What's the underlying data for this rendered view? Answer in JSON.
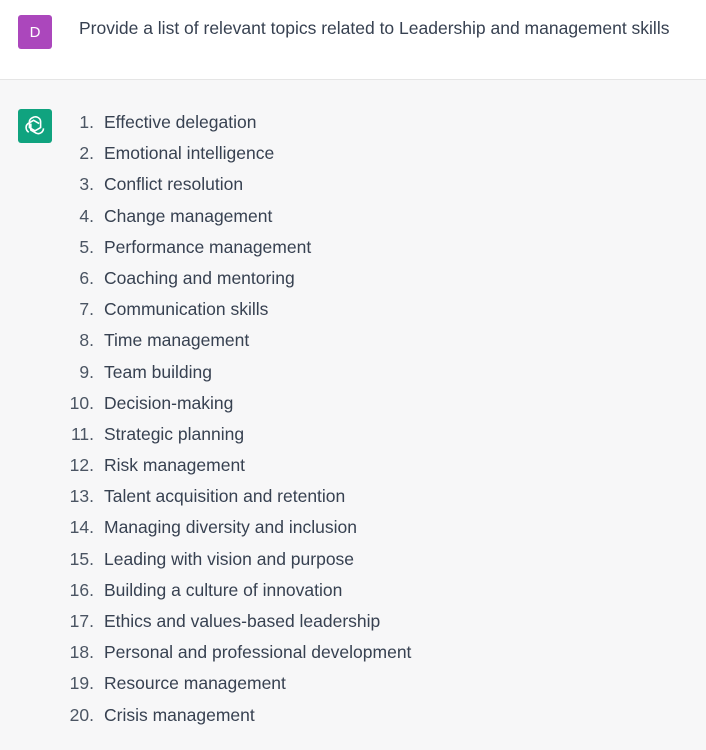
{
  "colors": {
    "user_avatar_bg": "#ab47bc",
    "assistant_avatar_bg": "#10a37f"
  },
  "user": {
    "avatar_letter": "D",
    "message": "Provide a list of relevant topics related to Leadership and management skills"
  },
  "assistant": {
    "avatar_icon": "openai-logo-icon",
    "items": [
      {
        "num": "1.",
        "text": "Effective delegation"
      },
      {
        "num": "2.",
        "text": "Emotional intelligence"
      },
      {
        "num": "3.",
        "text": "Conflict resolution"
      },
      {
        "num": "4.",
        "text": "Change management"
      },
      {
        "num": "5.",
        "text": "Performance management"
      },
      {
        "num": "6.",
        "text": "Coaching and mentoring"
      },
      {
        "num": "7.",
        "text": "Communication skills"
      },
      {
        "num": "8.",
        "text": "Time management"
      },
      {
        "num": "9.",
        "text": "Team building"
      },
      {
        "num": "10.",
        "text": "Decision-making"
      },
      {
        "num": "11.",
        "text": "Strategic planning"
      },
      {
        "num": "12.",
        "text": "Risk management"
      },
      {
        "num": "13.",
        "text": "Talent acquisition and retention"
      },
      {
        "num": "14.",
        "text": "Managing diversity and inclusion"
      },
      {
        "num": "15.",
        "text": "Leading with vision and purpose"
      },
      {
        "num": "16.",
        "text": "Building a culture of innovation"
      },
      {
        "num": "17.",
        "text": "Ethics and values-based leadership"
      },
      {
        "num": "18.",
        "text": "Personal and professional development"
      },
      {
        "num": "19.",
        "text": "Resource management"
      },
      {
        "num": "20.",
        "text": "Crisis management"
      }
    ]
  }
}
